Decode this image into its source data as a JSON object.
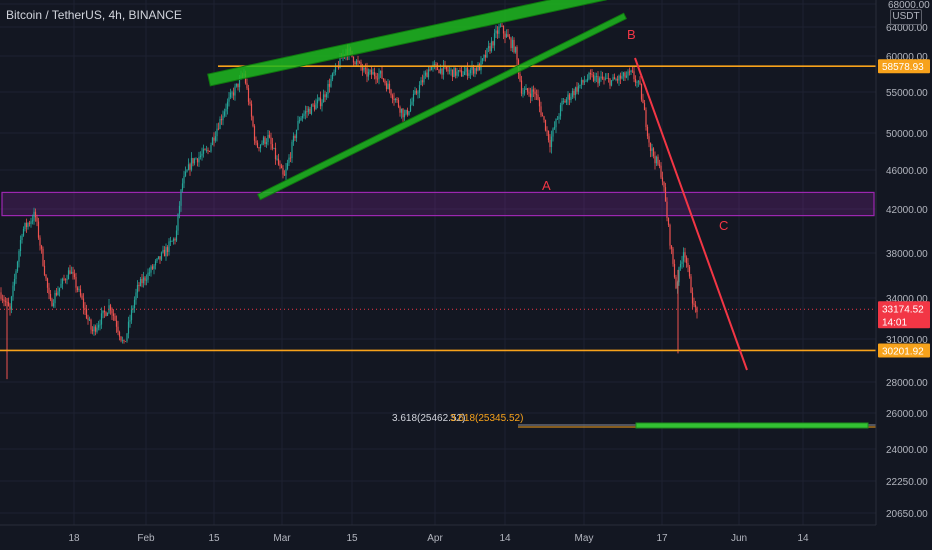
{
  "header": {
    "symbol_title": "Bitcoin / TetherUS, 4h, BINANCE",
    "currency": "USDT"
  },
  "chart_data": {
    "type": "candlestick",
    "title": "Bitcoin / TetherUS, 4h, BINANCE",
    "ylim": [
      20000,
      68000
    ],
    "y_ticks": [
      "68000.00",
      "64000.00",
      "60000.00",
      "55000.00",
      "50000.00",
      "46000.00",
      "42000.00",
      "38000.00",
      "34000.00",
      "31000.00",
      "28000.00",
      "26000.00",
      "24000.00",
      "22250.00",
      "20650.00"
    ],
    "x_ticks": [
      "18",
      "Feb",
      "15",
      "Mar",
      "15",
      "Apr",
      "14",
      "May",
      "17",
      "Jun",
      "14"
    ],
    "price_labels": [
      {
        "text": "58578.93",
        "value": 58578.93,
        "color": "#f7a21b"
      },
      {
        "text": "33174.52",
        "value": 33174.52,
        "color": "#f23645"
      },
      {
        "text": "14:01",
        "value": 32350,
        "color": "#f23645"
      },
      {
        "text": "30201.92",
        "value": 30201.92,
        "color": "#f7a21b"
      }
    ],
    "horizontal_levels": [
      {
        "value": 58578.93,
        "color": "#f7a21b"
      },
      {
        "value": 30201.92,
        "color": "#f7a21b"
      },
      {
        "value": 33174.52,
        "color": "#f23645",
        "style": "dotted"
      }
    ],
    "zone": {
      "low": 41400,
      "high": 43700,
      "color": "#9c27b0"
    },
    "annotations": [
      {
        "text": "A",
        "color": "#f23645"
      },
      {
        "text": "B",
        "color": "#f23645"
      },
      {
        "text": "C",
        "color": "#f23645"
      }
    ],
    "fib_labels": [
      {
        "text": "3.618(25462.52)",
        "value": 25462.52,
        "color": "#d1d4dc"
      },
      {
        "text": "3.618(25345.52)",
        "value": 25345.52,
        "color": "#f7a21b"
      }
    ],
    "colors": {
      "up": "#26a69a",
      "down": "#ef5350",
      "trend": "#1fb81f",
      "cut": "#f23645"
    }
  }
}
